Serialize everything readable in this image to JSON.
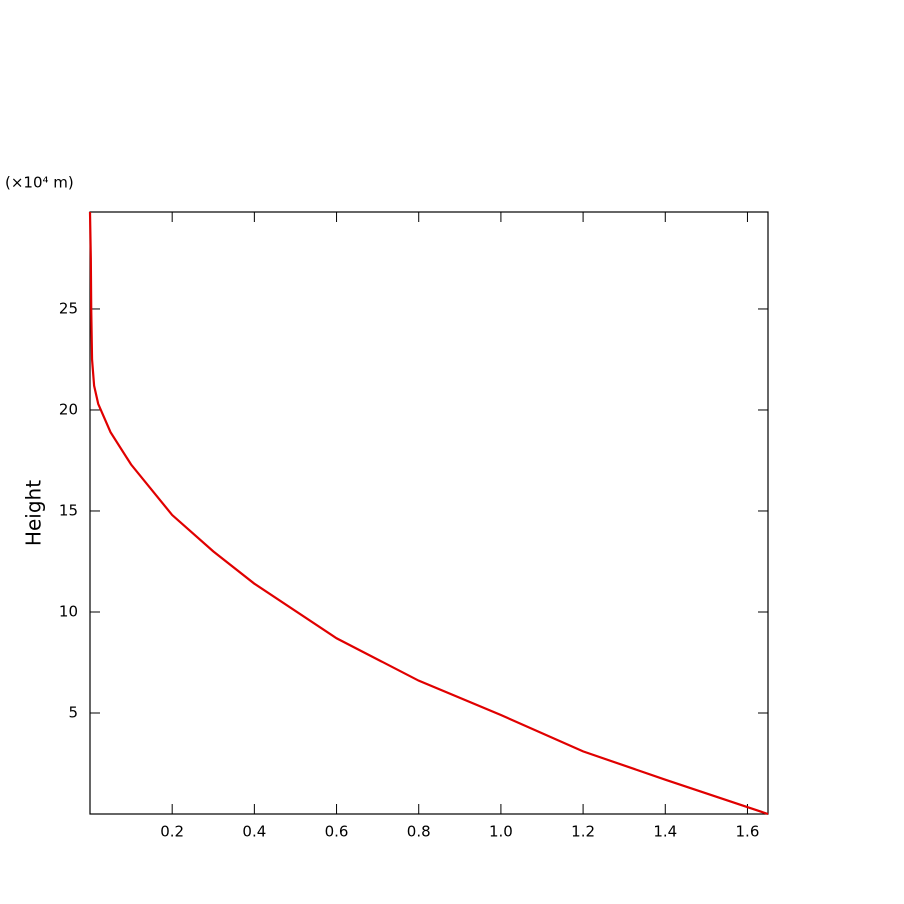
{
  "chart_data": {
    "type": "line",
    "y_unit_label": "(×10⁴ m)",
    "y_label": "Height",
    "x": [
      1.65,
      1.4,
      1.2,
      1.0,
      0.8,
      0.6,
      0.4,
      0.3,
      0.2,
      0.1,
      0.05,
      0.02,
      0.01,
      0.005,
      0.003,
      0.002,
      0
    ],
    "series": [
      {
        "color": "#e00000",
        "values": [
          0,
          1.7,
          3.1,
          4.9,
          6.6,
          8.7,
          11.4,
          13.0,
          14.8,
          17.3,
          18.9,
          20.3,
          21.2,
          22.5,
          25,
          27.5,
          29.8
        ]
      }
    ],
    "xlim": [
      0,
      1.65
    ],
    "ylim": [
      0,
      29.8
    ],
    "xticks": [
      0.2,
      0.4,
      0.6,
      0.8,
      {
        "value": 1,
        "label": "1.0"
      },
      1.2,
      1.4,
      1.6
    ],
    "yticks": [
      5,
      10,
      15,
      20,
      25
    ]
  }
}
